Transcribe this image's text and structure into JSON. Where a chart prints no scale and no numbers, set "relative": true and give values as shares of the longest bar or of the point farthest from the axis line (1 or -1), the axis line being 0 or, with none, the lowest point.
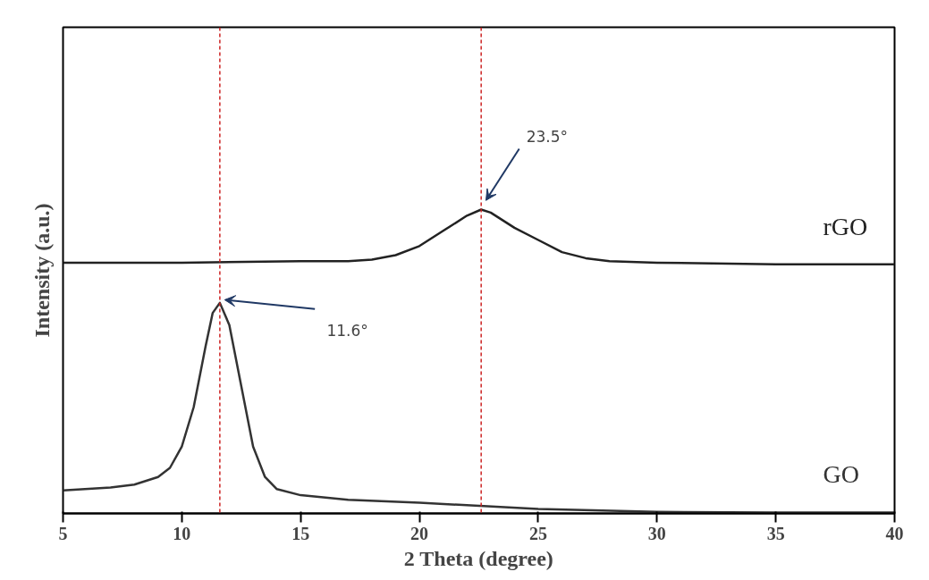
{
  "chart_data": {
    "type": "line",
    "relative": true,
    "xlabel": "2 Theta (degree)",
    "ylabel": "Intensity (a.u.)",
    "xlim": [
      5,
      40
    ],
    "xticks": [
      5,
      10,
      15,
      20,
      25,
      30,
      35,
      40
    ],
    "grid": false,
    "legend": false,
    "marker": "none",
    "line_style": "solid",
    "series": [
      {
        "name": "rGO",
        "color": "#222222",
        "x": [
          5,
          10,
          15,
          17,
          18,
          19,
          20,
          21,
          22,
          22.6,
          23,
          24,
          25,
          26,
          27,
          28,
          30,
          35,
          40
        ],
        "values": [
          0.825,
          0.825,
          0.83,
          0.83,
          0.835,
          0.85,
          0.88,
          0.93,
          0.98,
          1.0,
          0.99,
          0.94,
          0.9,
          0.86,
          0.84,
          0.83,
          0.825,
          0.82,
          0.82
        ]
      },
      {
        "name": "GO",
        "color": "#333333",
        "x": [
          5,
          7,
          8,
          9,
          9.5,
          10,
          10.5,
          11,
          11.3,
          11.6,
          12,
          12.5,
          13,
          13.5,
          14,
          15,
          17,
          20,
          25,
          30,
          35,
          40
        ],
        "values": [
          0.076,
          0.085,
          0.095,
          0.12,
          0.15,
          0.22,
          0.35,
          0.55,
          0.66,
          0.693,
          0.62,
          0.42,
          0.22,
          0.12,
          0.08,
          0.06,
          0.045,
          0.035,
          0.015,
          0.005,
          0.003,
          0.003
        ]
      }
    ],
    "ref_lines": [
      {
        "axis": "x",
        "value": 11.6,
        "color": "#cc2222",
        "line_style": "dashed"
      },
      {
        "axis": "x",
        "value": 22.6,
        "color": "#cc2222",
        "line_style": "dashed"
      }
    ],
    "annotations": [
      {
        "text": "11.6°",
        "x": 11.6,
        "y": 0.693
      },
      "23.5°"
    ]
  }
}
